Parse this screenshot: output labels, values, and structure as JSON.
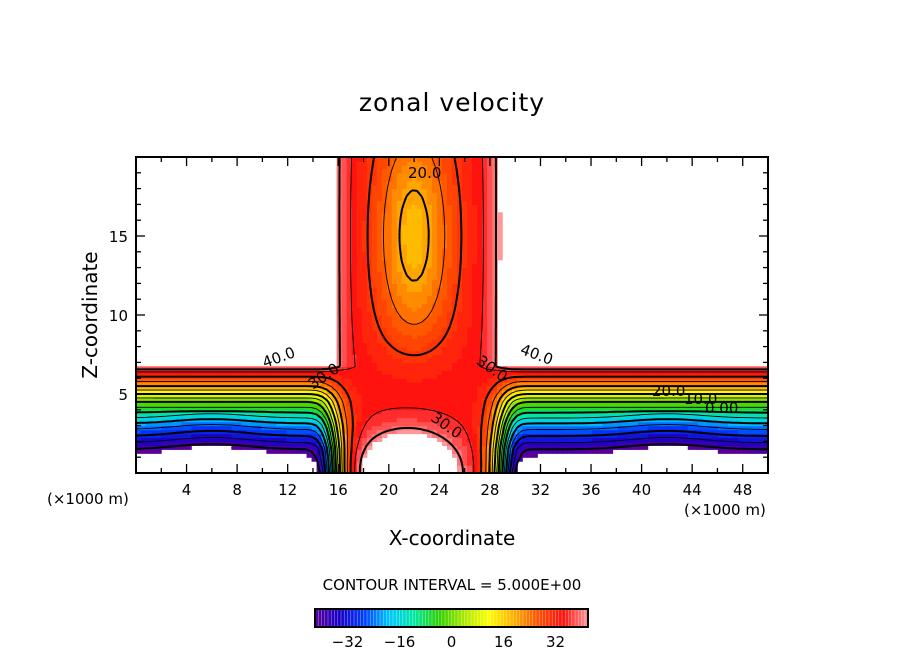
{
  "chart_data": {
    "type": "heatmap",
    "subtype": "filled-contour",
    "title": "zonal velocity",
    "xlabel": "X-coordinate",
    "ylabel": "Z-coordinate",
    "x_unit_label": "(×1000 m)",
    "xlim": [
      0,
      50
    ],
    "ylim": [
      0,
      20
    ],
    "xticks": [
      "4",
      "8",
      "12",
      "16",
      "20",
      "24",
      "28",
      "32",
      "36",
      "40",
      "44",
      "48"
    ],
    "xtick_values": [
      4,
      8,
      12,
      16,
      20,
      24,
      28,
      32,
      36,
      40,
      44,
      48
    ],
    "yticks": [
      "5",
      "10",
      "15"
    ],
    "ytick_values": [
      5,
      10,
      15
    ],
    "contour_interval_label": "CONTOUR INTERVAL = 5.000E+00",
    "contour_interval": 5,
    "contour_labels": [
      "40.0",
      "30.0",
      "30.0",
      "40.0",
      "20.0",
      "30.0",
      "20.0",
      "10.0",
      "0.00"
    ],
    "colorbar": {
      "range": [
        -42,
        42
      ],
      "ticks": [
        "-32",
        "-16",
        "0",
        "16",
        "32"
      ],
      "tick_values": [
        -32,
        -16,
        0,
        16,
        32
      ],
      "colors": [
        "#5a0098",
        "#1800c8",
        "#0040ff",
        "#00c8ff",
        "#00e8a0",
        "#30d000",
        "#a8e800",
        "#ffff00",
        "#ffb000",
        "#ff5000",
        "#ff1010",
        "#ff9898"
      ]
    },
    "field_description_points": {
      "z_profile_outside_jet": {
        "z": [
          0,
          1.5,
          3,
          4.5,
          5.5,
          6.7
        ],
        "u": [
          -48,
          -40,
          -22,
          0,
          20,
          40
        ]
      },
      "jet_core_min": {
        "x": 22,
        "z": 15,
        "u": 18
      }
    }
  }
}
